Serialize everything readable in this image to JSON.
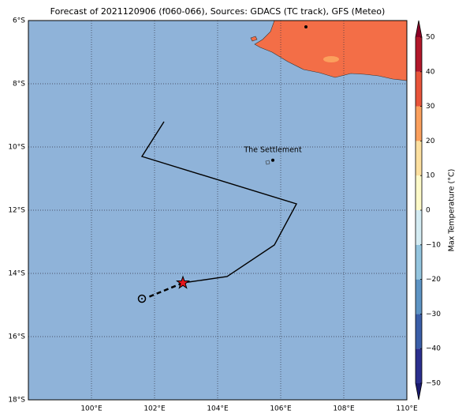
{
  "map": {
    "title": "Forecast of 2021120906 (f060-066), Sources: GDACS (TC track), GFS (Meteo)",
    "xlim": [
      98,
      110
    ],
    "ylim": [
      -18,
      -6
    ],
    "xticks": [
      {
        "value": 100,
        "label": "100°E"
      },
      {
        "value": 102,
        "label": "102°E"
      },
      {
        "value": 104,
        "label": "104°E"
      },
      {
        "value": 106,
        "label": "106°E"
      },
      {
        "value": 108,
        "label": "108°E"
      },
      {
        "value": 110,
        "label": "110°E"
      }
    ],
    "yticks": [
      {
        "value": -6,
        "label": "6°S"
      },
      {
        "value": -8,
        "label": "8°S"
      },
      {
        "value": -10,
        "label": "10°S"
      },
      {
        "value": -12,
        "label": "12°S"
      },
      {
        "value": -14,
        "label": "14°S"
      },
      {
        "value": -16,
        "label": "16°S"
      },
      {
        "value": -18,
        "label": "18°S"
      }
    ],
    "track": {
      "lon": [
        102.3,
        101.6,
        106.5,
        105.8,
        104.3,
        102.9
      ],
      "lat": [
        -9.2,
        -10.3,
        -11.8,
        -13.1,
        -14.1,
        -14.3
      ]
    },
    "forecast": {
      "lon": [
        102.9,
        101.8
      ],
      "lat": [
        -14.3,
        -14.75
      ]
    },
    "current": {
      "lon": 102.9,
      "lat": -14.3
    },
    "forecast_end": {
      "lon": 101.6,
      "lat": -14.8
    },
    "places": [
      {
        "name": "The Settlement",
        "lon": 105.75,
        "lat": -10.42
      }
    ],
    "colorbar": {
      "label": "Max Temperature (°C)",
      "lim": [
        -50,
        50
      ],
      "ticks": [
        {
          "value": -50,
          "label": "−50"
        },
        {
          "value": -40,
          "label": "−40"
        },
        {
          "value": -30,
          "label": "−30"
        },
        {
          "value": -20,
          "label": "−20"
        },
        {
          "value": -10,
          "label": "−10"
        },
        0,
        10,
        20,
        30,
        40,
        50
      ],
      "colors": [
        "#2b2f8e",
        "#3a5ea8",
        "#5d94c4",
        "#94c5df",
        "#d4ecf3",
        "#fefac9",
        "#fde0a0",
        "#fba05d",
        "#e8543a",
        "#b2182b"
      ],
      "under": "#1a1a6e",
      "over": "#8b0026"
    }
  }
}
